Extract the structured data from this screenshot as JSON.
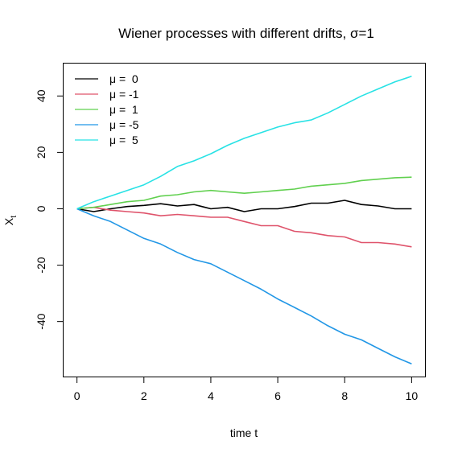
{
  "chart_data": {
    "type": "line",
    "title": "Wiener processes with different drifts,  σ=1",
    "xlabel": "time  t",
    "ylabel": {
      "main": "X",
      "sub": "t"
    },
    "xlim": [
      -0.4,
      10.4
    ],
    "ylim": [
      -59.5,
      51.5
    ],
    "xticks": [
      0,
      2,
      4,
      6,
      8,
      10
    ],
    "xtick_labels": [
      "0",
      "2",
      "4",
      "6",
      "8",
      "10"
    ],
    "yticks": [
      -40,
      -20,
      0,
      20,
      40
    ],
    "ytick_labels": [
      "-40",
      "-20",
      "0",
      "20",
      "40"
    ],
    "grid": false,
    "legend_position": "top-left",
    "series": [
      {
        "name": "μ =  0",
        "color": "#000000",
        "x": [
          0,
          0.5,
          1,
          1.5,
          2,
          2.5,
          3,
          3.5,
          4,
          4.5,
          5,
          5.5,
          6,
          6.5,
          7,
          7.5,
          8,
          8.5,
          9,
          9.5,
          10
        ],
        "y": [
          0,
          -1.0,
          0.0,
          0.8,
          1.2,
          1.8,
          1.0,
          1.5,
          0.0,
          0.5,
          -1.0,
          0.0,
          0.0,
          0.8,
          2.0,
          2.0,
          3.0,
          1.5,
          1.0,
          0.0,
          0.0
        ]
      },
      {
        "name": "μ = -1",
        "color": "#df536b",
        "x": [
          0,
          0.5,
          1,
          1.5,
          2,
          2.5,
          3,
          3.5,
          4,
          4.5,
          5,
          5.5,
          6,
          6.5,
          7,
          7.5,
          8,
          8.5,
          9,
          9.5,
          10
        ],
        "y": [
          0,
          0.5,
          -0.5,
          -1.0,
          -1.5,
          -2.5,
          -2.0,
          -2.5,
          -3.0,
          -3.0,
          -4.5,
          -6.0,
          -6.0,
          -8.0,
          -8.5,
          -9.5,
          -10.0,
          -12.0,
          -12.0,
          -12.5,
          -13.5
        ]
      },
      {
        "name": "μ =  1",
        "color": "#61d04f",
        "x": [
          0,
          0.5,
          1,
          1.5,
          2,
          2.5,
          3,
          3.5,
          4,
          4.5,
          5,
          5.5,
          6,
          6.5,
          7,
          7.5,
          8,
          8.5,
          9,
          9.5,
          10
        ],
        "y": [
          0,
          0.5,
          1.5,
          2.5,
          3.0,
          4.5,
          5.0,
          6.0,
          6.5,
          6.0,
          5.5,
          6.0,
          6.5,
          7.0,
          8.0,
          8.5,
          9.0,
          10.0,
          10.5,
          11.0,
          11.2
        ]
      },
      {
        "name": "μ = -5",
        "color": "#2297e6",
        "x": [
          0,
          0.5,
          1,
          1.5,
          2,
          2.5,
          3,
          3.5,
          4,
          4.5,
          5,
          5.5,
          6,
          6.5,
          7,
          7.5,
          8,
          8.5,
          9,
          9.5,
          10
        ],
        "y": [
          0,
          -2.5,
          -4.5,
          -7.5,
          -10.5,
          -12.5,
          -15.5,
          -18.0,
          -19.5,
          -22.5,
          -25.5,
          -28.5,
          -32.0,
          -35.0,
          -38.0,
          -41.5,
          -44.5,
          -46.5,
          -49.5,
          -52.5,
          -55.0
        ]
      },
      {
        "name": "μ =  5",
        "color": "#28e2e5",
        "x": [
          0,
          0.5,
          1,
          1.5,
          2,
          2.5,
          3,
          3.5,
          4,
          4.5,
          5,
          5.5,
          6,
          6.5,
          7,
          7.5,
          8,
          8.5,
          9,
          9.5,
          10
        ],
        "y": [
          0,
          2.5,
          4.5,
          6.5,
          8.5,
          11.5,
          15.0,
          17.0,
          19.5,
          22.5,
          25.0,
          27.0,
          29.0,
          30.5,
          31.5,
          34.0,
          37.0,
          40.0,
          42.5,
          45.0,
          47.0
        ]
      }
    ]
  }
}
